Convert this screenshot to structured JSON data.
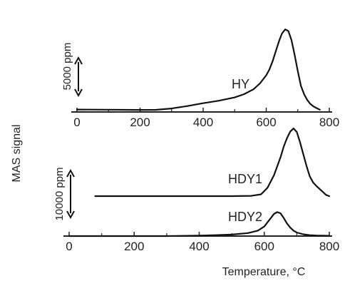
{
  "chart_data": {
    "type": "line",
    "ylabel": "MAS signal",
    "xlabel": "Temperature, °C",
    "panels": [
      {
        "name": "top",
        "xlim": [
          0,
          800
        ],
        "x_ticks": [
          "0",
          "200",
          "400",
          "600",
          "800"
        ],
        "scale_bar": "5000 ppm",
        "series": [
          {
            "name": "HY",
            "x": [
              0,
              100,
              200,
              250,
              300,
              350,
              400,
              450,
              500,
              530,
              560,
              580,
              600,
              610,
              620,
              630,
              640,
              650,
              660,
              670,
              680,
              690,
              700,
              710,
              720,
              730,
              740,
              750,
              760,
              770
            ],
            "y": [
              120,
              100,
              80,
              90,
              250,
              550,
              900,
              1200,
              1600,
              2000,
              2600,
              3300,
              4300,
              5000,
              6000,
              7200,
              8400,
              9400,
              9900,
              9700,
              8600,
              6800,
              4800,
              3000,
              2000,
              1300,
              800,
              500,
              300,
              100
            ]
          }
        ]
      },
      {
        "name": "bottom",
        "xlim": [
          0,
          800
        ],
        "x_ticks": [
          "0",
          "200",
          "400",
          "600",
          "800"
        ],
        "scale_bar": "10000 ppm",
        "series": [
          {
            "name": "HDY1",
            "x": [
              80,
              200,
              400,
              500,
              560,
              590,
              610,
              630,
              650,
              660,
              670,
              680,
              690,
              700,
              710,
              720,
              730,
              740,
              750,
              760,
              770,
              780,
              790,
              800
            ],
            "y": [
              0,
              0,
              0,
              0,
              50,
              300,
              1400,
              3500,
              6500,
              8300,
              9700,
              10800,
              11300,
              10700,
              9000,
              7000,
              5000,
              3300,
              2300,
              1700,
              1200,
              700,
              200,
              0
            ],
            "baseline": 0
          },
          {
            "name": "HDY2",
            "x": [
              0,
              100,
              200,
              300,
              400,
              450,
              500,
              550,
              580,
              600,
              610,
              620,
              630,
              640,
              650,
              660,
              670,
              680,
              690,
              700,
              720,
              740,
              760,
              800
            ],
            "y": [
              0,
              0,
              0,
              0,
              80,
              150,
              250,
              500,
              900,
              1600,
              2300,
              3000,
              3700,
              4000,
              3800,
              3000,
              2100,
              1400,
              900,
              600,
              300,
              150,
              100,
              50
            ],
            "baseline": -13700
          }
        ]
      }
    ]
  }
}
